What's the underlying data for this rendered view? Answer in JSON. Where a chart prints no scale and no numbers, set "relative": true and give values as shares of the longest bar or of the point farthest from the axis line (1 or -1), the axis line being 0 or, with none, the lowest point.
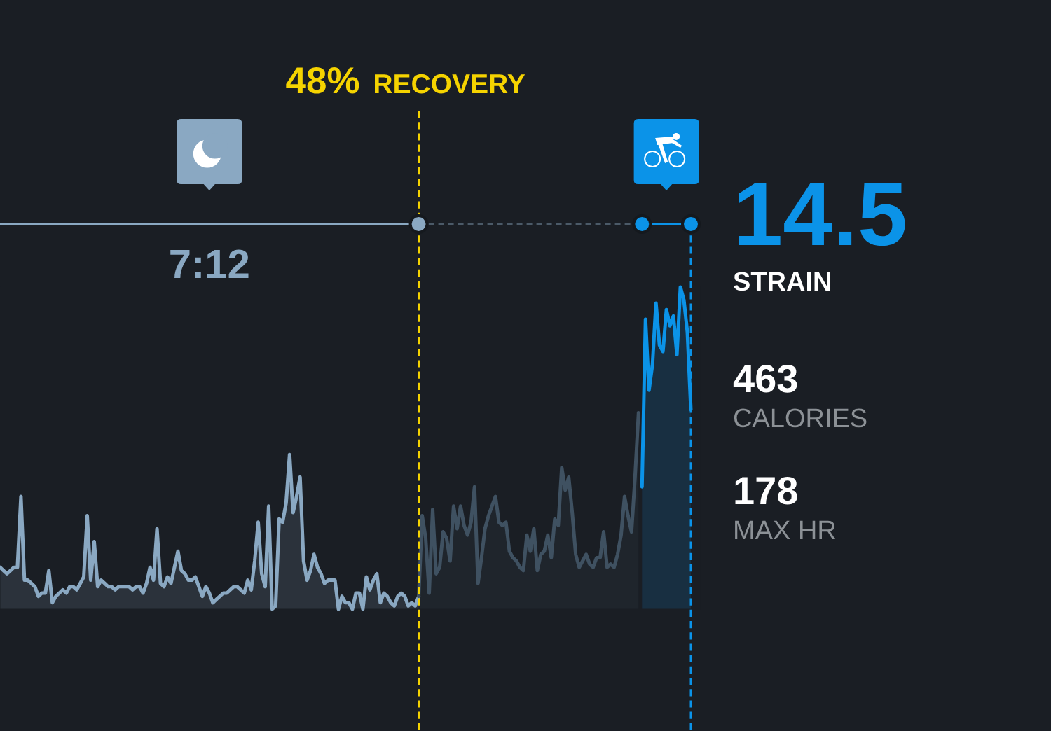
{
  "chart_data": {
    "type": "area",
    "relative": true,
    "categories": [
      null,
      null,
      null,
      null,
      null,
      null,
      null,
      null,
      null,
      null,
      null,
      null,
      null,
      null,
      null,
      null,
      null,
      null,
      null,
      null,
      null,
      null,
      null,
      null,
      null,
      null,
      null,
      null,
      null,
      null,
      null,
      null,
      null,
      null,
      null,
      null,
      null,
      null,
      null,
      null,
      null,
      null,
      null,
      null,
      null,
      null,
      null,
      null,
      null,
      null,
      null,
      null,
      null,
      null,
      null,
      null,
      null,
      null,
      null,
      null,
      null,
      null,
      null,
      null,
      null,
      null,
      null,
      null,
      null,
      null,
      null,
      null,
      null,
      null,
      null,
      null,
      null,
      null,
      null,
      null,
      null,
      null,
      null,
      null,
      null,
      null,
      null,
      null,
      null,
      null,
      null,
      null,
      null,
      null,
      null,
      null,
      null,
      null,
      null,
      null,
      null,
      null,
      null,
      null,
      null,
      null,
      null,
      null,
      null,
      null,
      null,
      null,
      null,
      null,
      null,
      null,
      null,
      null,
      null,
      null,
      null,
      null,
      null,
      null,
      null,
      null,
      null,
      null,
      null,
      null,
      null,
      null,
      null,
      null,
      null,
      null,
      null,
      null,
      null,
      null,
      null,
      null,
      null,
      null,
      null,
      null,
      null,
      null,
      null,
      null,
      null,
      null,
      null,
      null,
      null,
      null,
      null,
      null,
      null,
      null,
      null,
      null,
      null,
      null,
      null,
      null,
      null,
      null,
      null,
      null,
      null,
      null,
      null,
      null,
      null,
      null,
      null,
      null,
      null,
      null,
      null,
      null,
      null,
      null,
      null,
      null,
      null,
      null,
      null,
      null,
      null,
      null,
      null,
      null,
      null,
      null,
      null,
      null,
      null
    ],
    "series": [
      {
        "color": "#8aa8c2",
        "values": [
          0.13,
          0.12,
          0.11,
          0.12,
          0.13,
          0.13,
          0.35,
          0.09,
          0.09,
          0.08,
          0.07,
          0.04,
          0.05,
          0.05,
          0.12,
          0.02,
          0.04,
          0.05,
          0.06,
          0.05,
          0.07,
          0.07,
          0.06,
          0.08,
          0.1,
          0.29,
          0.09,
          0.21,
          0.07,
          0.09,
          0.08,
          0.07,
          0.07,
          0.06,
          0.07,
          0.07,
          0.07,
          0.07,
          0.06,
          0.07,
          0.07,
          0.05,
          0.08,
          0.13,
          0.09,
          0.25,
          0.08,
          0.07,
          0.1,
          0.08,
          0.13,
          0.18,
          0.12,
          0.11,
          0.09,
          0.09,
          0.1,
          0.07,
          0.04,
          0.07,
          0.05,
          0.02,
          0.03,
          0.04,
          0.05,
          0.05,
          0.06,
          0.07,
          0.07,
          0.06,
          0.05,
          0.09,
          0.06,
          0.15,
          0.27,
          0.11,
          0.07,
          0.32,
          0,
          0.01,
          0.28,
          0.27,
          0.33,
          0.48,
          0.3,
          0.35,
          0.41,
          0.15,
          0.09,
          0.12,
          0.17,
          0.13,
          0.11,
          0.08,
          0.09,
          0.09,
          0.09,
          0,
          0.04,
          0.02,
          0.02,
          0,
          0.05,
          0.05,
          0,
          0.1,
          0.06,
          0.09,
          0.11,
          0.02,
          0.05,
          0.04,
          0.02,
          0.01,
          0.04,
          0.05,
          0.04,
          0.01,
          0.02,
          0.01,
          0.04,
          null,
          null,
          null,
          null,
          null,
          null,
          null,
          null,
          null,
          null,
          null,
          null,
          null,
          null,
          null,
          null,
          null,
          null,
          null,
          null,
          null,
          null,
          null,
          null,
          null,
          null,
          null,
          null,
          null,
          null,
          null,
          null,
          null,
          null,
          null,
          null,
          null,
          null,
          null,
          null,
          null,
          null,
          null,
          null,
          null,
          null,
          null,
          null,
          null,
          null,
          null,
          null,
          null,
          null,
          null,
          null,
          null,
          null,
          null,
          null,
          null,
          null,
          null,
          null,
          null,
          null,
          null,
          null,
          null,
          null,
          null,
          null,
          null,
          null,
          null,
          null,
          null,
          null
        ]
      },
      {
        "color": "#3f5161",
        "values": [
          null,
          null,
          null,
          null,
          null,
          null,
          null,
          null,
          null,
          null,
          null,
          null,
          null,
          null,
          null,
          null,
          null,
          null,
          null,
          null,
          null,
          null,
          null,
          null,
          null,
          null,
          null,
          null,
          null,
          null,
          null,
          null,
          null,
          null,
          null,
          null,
          null,
          null,
          null,
          null,
          null,
          null,
          null,
          null,
          null,
          null,
          null,
          null,
          null,
          null,
          null,
          null,
          null,
          null,
          null,
          null,
          null,
          null,
          null,
          null,
          null,
          null,
          null,
          null,
          null,
          null,
          null,
          null,
          null,
          null,
          null,
          null,
          null,
          null,
          null,
          null,
          null,
          null,
          null,
          null,
          null,
          null,
          null,
          null,
          null,
          null,
          null,
          null,
          null,
          null,
          null,
          null,
          null,
          null,
          null,
          null,
          null,
          null,
          null,
          null,
          null,
          null,
          null,
          null,
          null,
          null,
          null,
          null,
          null,
          null,
          null,
          null,
          null,
          null,
          null,
          null,
          null,
          null,
          null,
          null,
          0.04,
          0.29,
          0.22,
          0.05,
          0.31,
          0.11,
          0.13,
          0.24,
          0.22,
          0.15,
          0.32,
          0.25,
          0.32,
          0.26,
          0.23,
          0.27,
          0.38,
          0.08,
          0.16,
          0.25,
          0.29,
          0.32,
          0.35,
          0.27,
          0.26,
          0.27,
          0.18,
          0.16,
          0.15,
          0.13,
          0.12,
          0.23,
          0.18,
          0.25,
          0.12,
          0.17,
          0.18,
          0.23,
          0.16,
          0.28,
          0.26,
          0.44,
          0.37,
          0.41,
          0.3,
          0.17,
          0.13,
          0.15,
          0.17,
          0.14,
          0.13,
          0.16,
          0.16,
          0.24,
          0.13,
          0.14,
          0.13,
          0.17,
          0.23,
          0.35,
          0.29,
          0.24,
          0.41,
          0.61,
          null,
          null,
          null,
          null,
          null,
          null,
          null,
          null,
          null,
          null,
          null,
          null,
          null,
          null,
          null
        ]
      },
      {
        "color": "#0b93e8",
        "values": [
          null,
          null,
          null,
          null,
          null,
          null,
          null,
          null,
          null,
          null,
          null,
          null,
          null,
          null,
          null,
          null,
          null,
          null,
          null,
          null,
          null,
          null,
          null,
          null,
          null,
          null,
          null,
          null,
          null,
          null,
          null,
          null,
          null,
          null,
          null,
          null,
          null,
          null,
          null,
          null,
          null,
          null,
          null,
          null,
          null,
          null,
          null,
          null,
          null,
          null,
          null,
          null,
          null,
          null,
          null,
          null,
          null,
          null,
          null,
          null,
          null,
          null,
          null,
          null,
          null,
          null,
          null,
          null,
          null,
          null,
          null,
          null,
          null,
          null,
          null,
          null,
          null,
          null,
          null,
          null,
          null,
          null,
          null,
          null,
          null,
          null,
          null,
          null,
          null,
          null,
          null,
          null,
          null,
          null,
          null,
          null,
          null,
          null,
          null,
          null,
          null,
          null,
          null,
          null,
          null,
          null,
          null,
          null,
          null,
          null,
          null,
          null,
          null,
          null,
          null,
          null,
          null,
          null,
          null,
          null,
          null,
          null,
          null,
          null,
          null,
          null,
          null,
          null,
          null,
          null,
          null,
          null,
          null,
          null,
          null,
          null,
          null,
          null,
          null,
          null,
          null,
          null,
          null,
          null,
          null,
          null,
          null,
          null,
          null,
          null,
          null,
          null,
          null,
          null,
          null,
          null,
          null,
          null,
          null,
          null,
          null,
          null,
          null,
          null,
          null,
          null,
          null,
          null,
          null,
          null,
          null,
          null,
          null,
          null,
          null,
          null,
          null,
          null,
          null,
          null,
          null,
          null,
          null,
          null,
          0.38,
          0.9,
          0.68,
          0.76,
          0.95,
          0.82,
          0.8,
          0.93,
          0.88,
          0.91,
          0.79,
          1,
          0.96,
          0.86,
          0.62
        ]
      }
    ],
    "annotations": [
      "48%",
      "RECOVERY",
      "7:12",
      "14.5",
      "STRAIN",
      "463",
      "CALORIES",
      "178",
      "MAX HR"
    ]
  }
}
